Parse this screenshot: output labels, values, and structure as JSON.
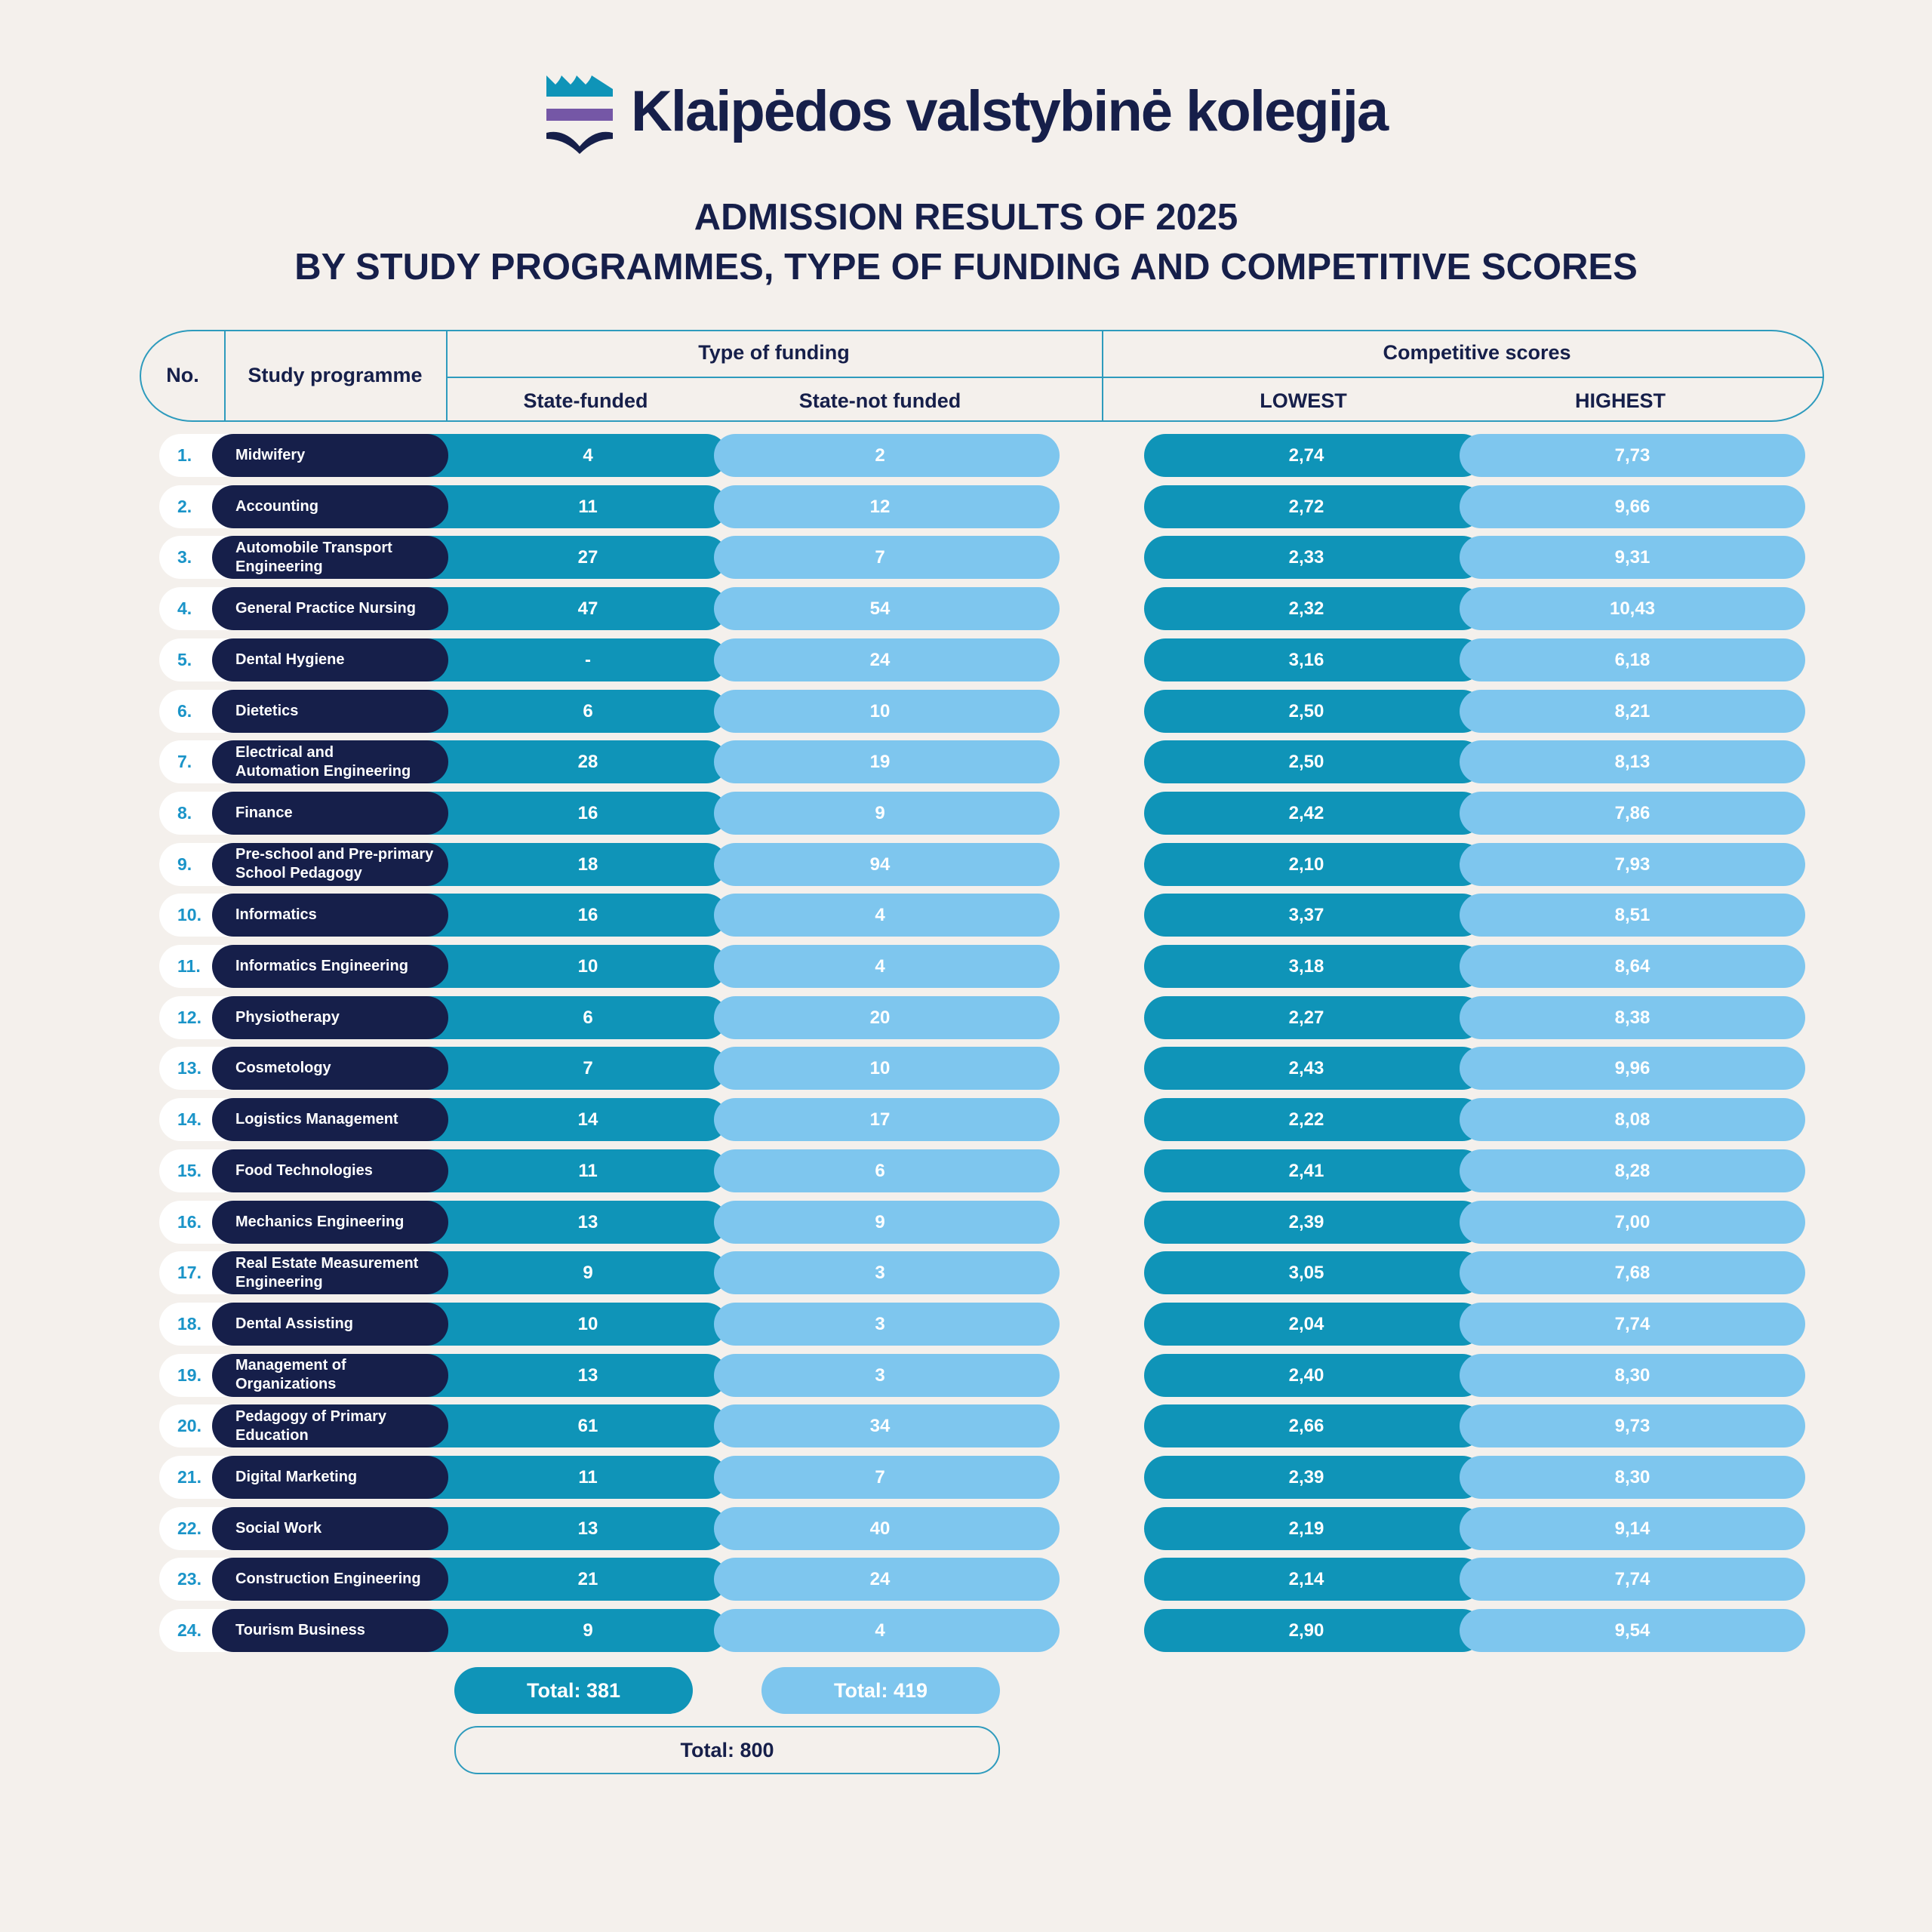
{
  "brand": {
    "name": "Klaipėdos valstybinė kolegija",
    "colors": {
      "navy": "#161f4a",
      "teal": "#0f94b8",
      "light_blue": "#7ec6ee",
      "purple": "#7557a6",
      "background": "#f4f0ec",
      "number_blue": "#1a94c8"
    }
  },
  "title": {
    "line1": "ADMISSION RESULTS OF 2025",
    "line2": "BY STUDY PROGRAMMES, TYPE OF FUNDING AND COMPETITIVE SCORES"
  },
  "header": {
    "no": "No.",
    "programme": "Study programme",
    "funding": "Type of funding",
    "state_funded": "State-funded",
    "state_not_funded": "State-not funded",
    "scores": "Competitive scores",
    "lowest": "LOWEST",
    "highest": "HIGHEST"
  },
  "rows": [
    {
      "no": "1.",
      "name": "Midwifery",
      "state_funded": "4",
      "state_not_funded": "2",
      "lowest": "2,74",
      "highest": "7,73"
    },
    {
      "no": "2.",
      "name": "Accounting",
      "state_funded": "11",
      "state_not_funded": "12",
      "lowest": "2,72",
      "highest": "9,66"
    },
    {
      "no": "3.",
      "name": "Automobile Transport\nEngineering",
      "state_funded": "27",
      "state_not_funded": "7",
      "lowest": "2,33",
      "highest": "9,31"
    },
    {
      "no": "4.",
      "name": "General Practice Nursing",
      "state_funded": "47",
      "state_not_funded": "54",
      "lowest": "2,32",
      "highest": "10,43"
    },
    {
      "no": "5.",
      "name": "Dental Hygiene",
      "state_funded": "-",
      "state_not_funded": "24",
      "lowest": "3,16",
      "highest": "6,18"
    },
    {
      "no": "6.",
      "name": "Dietetics",
      "state_funded": "6",
      "state_not_funded": "10",
      "lowest": "2,50",
      "highest": "8,21"
    },
    {
      "no": "7.",
      "name": "Electrical and\nAutomation Engineering",
      "state_funded": "28",
      "state_not_funded": "19",
      "lowest": "2,50",
      "highest": "8,13"
    },
    {
      "no": "8.",
      "name": "Finance",
      "state_funded": "16",
      "state_not_funded": "9",
      "lowest": "2,42",
      "highest": "7,86"
    },
    {
      "no": "9.",
      "name": "Pre-school and Pre-primary\nSchool Pedagogy",
      "state_funded": "18",
      "state_not_funded": "94",
      "lowest": "2,10",
      "highest": "7,93"
    },
    {
      "no": "10.",
      "name": "Informatics",
      "state_funded": "16",
      "state_not_funded": "4",
      "lowest": "3,37",
      "highest": "8,51"
    },
    {
      "no": "11.",
      "name": "Informatics Engineering",
      "state_funded": "10",
      "state_not_funded": "4",
      "lowest": "3,18",
      "highest": "8,64"
    },
    {
      "no": "12.",
      "name": "Physiotherapy",
      "state_funded": "6",
      "state_not_funded": "20",
      "lowest": "2,27",
      "highest": "8,38"
    },
    {
      "no": "13.",
      "name": "Cosmetology",
      "state_funded": "7",
      "state_not_funded": "10",
      "lowest": "2,43",
      "highest": "9,96"
    },
    {
      "no": "14.",
      "name": "Logistics Management",
      "state_funded": "14",
      "state_not_funded": "17",
      "lowest": "2,22",
      "highest": "8,08"
    },
    {
      "no": "15.",
      "name": "Food Technologies",
      "state_funded": "11",
      "state_not_funded": "6",
      "lowest": "2,41",
      "highest": "8,28"
    },
    {
      "no": "16.",
      "name": "Mechanics Engineering",
      "state_funded": "13",
      "state_not_funded": "9",
      "lowest": "2,39",
      "highest": "7,00"
    },
    {
      "no": "17.",
      "name": "Real Estate Measurement\nEngineering",
      "state_funded": "9",
      "state_not_funded": "3",
      "lowest": "3,05",
      "highest": "7,68"
    },
    {
      "no": "18.",
      "name": "Dental Assisting",
      "state_funded": "10",
      "state_not_funded": "3",
      "lowest": "2,04",
      "highest": "7,74"
    },
    {
      "no": "19.",
      "name": "Management of\nOrganizations",
      "state_funded": "13",
      "state_not_funded": "3",
      "lowest": "2,40",
      "highest": "8,30"
    },
    {
      "no": "20.",
      "name": "Pedagogy of Primary\nEducation",
      "state_funded": "61",
      "state_not_funded": "34",
      "lowest": "2,66",
      "highest": "9,73"
    },
    {
      "no": "21.",
      "name": "Digital Marketing",
      "state_funded": "11",
      "state_not_funded": "7",
      "lowest": "2,39",
      "highest": "8,30"
    },
    {
      "no": "22.",
      "name": "Social Work",
      "state_funded": "13",
      "state_not_funded": "40",
      "lowest": "2,19",
      "highest": "9,14"
    },
    {
      "no": "23.",
      "name": "Construction Engineering",
      "state_funded": "21",
      "state_not_funded": "24",
      "lowest": "2,14",
      "highest": "7,74"
    },
    {
      "no": "24.",
      "name": "Tourism Business",
      "state_funded": "9",
      "state_not_funded": "4",
      "lowest": "2,90",
      "highest": "9,54"
    }
  ],
  "totals": {
    "state_funded": "Total: 381",
    "state_not_funded": "Total: 419",
    "overall": "Total: 800"
  }
}
